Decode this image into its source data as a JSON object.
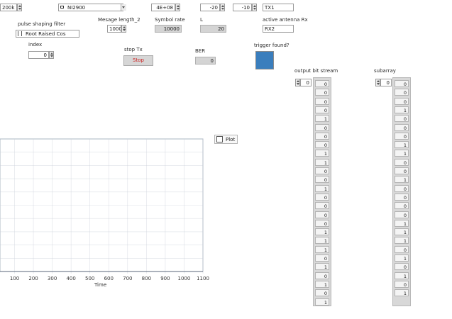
{
  "top_controls": {
    "rate_value": "200k",
    "device_value": "NI2900",
    "freq_value": "4E+08",
    "gain_value": "-20",
    "level_value": "-10",
    "tx_antenna_value": "TX1"
  },
  "pulse_filter": {
    "label": "pulse shaping filter",
    "value": "Root Raised Cos"
  },
  "message_length": {
    "label": "Mesage length_2",
    "value": "1000"
  },
  "symbol_rate": {
    "label": "Symbol rate",
    "value": "10000"
  },
  "l_param": {
    "label": "L",
    "value": "20"
  },
  "rx_antenna": {
    "label": "active antenna Rx",
    "value": "RX2"
  },
  "index": {
    "label": "index",
    "value": "0"
  },
  "stop_tx": {
    "label": "stop Tx",
    "button": "Stop"
  },
  "ber": {
    "label": "BER",
    "value": "0"
  },
  "trigger": {
    "label": "trigger found?",
    "color": "#3a7ebd"
  },
  "plot_legend": {
    "label": "Plot"
  },
  "graph": {
    "xlabel": "Time",
    "x_ticks": [
      "100",
      "200",
      "300",
      "400",
      "500",
      "600",
      "700",
      "800",
      "900",
      "1000",
      "1100"
    ],
    "bar_color": "#7a1616"
  },
  "output_bit_stream": {
    "label": "output bit stream",
    "index": "0",
    "values": [
      "0",
      "0",
      "0",
      "0",
      "1",
      "0",
      "0",
      "0",
      "1",
      "1",
      "0",
      "0",
      "1",
      "0",
      "0",
      "0",
      "0",
      "1",
      "1",
      "1",
      "0",
      "1",
      "0",
      "1",
      "0",
      "1"
    ]
  },
  "subarray": {
    "label": "subarray",
    "index": "0",
    "values": [
      "0",
      "0",
      "0",
      "1",
      "0",
      "0",
      "0",
      "1",
      "1",
      "0",
      "0",
      "1",
      "0",
      "0",
      "0",
      "0",
      "1",
      "1",
      "1",
      "0",
      "1",
      "0",
      "1",
      "0",
      "1"
    ]
  },
  "chart_data": {
    "type": "bar",
    "xlabel": "Time",
    "xlim": [
      0,
      1100
    ],
    "ylim": [
      0,
      1
    ],
    "x_ticks": [
      100,
      200,
      300,
      400,
      500,
      600,
      700,
      800,
      900,
      1000,
      1100
    ],
    "signal_end": 1010,
    "bits": [
      0,
      0,
      0,
      0,
      1,
      0,
      0,
      0,
      1,
      1,
      0,
      0,
      1,
      0,
      0,
      0,
      0,
      1,
      1,
      1,
      0,
      1,
      0,
      1,
      0,
      1,
      1,
      0,
      1,
      0,
      0,
      1,
      1,
      0,
      1,
      1,
      0,
      0,
      1,
      0,
      1,
      1,
      0,
      1,
      0,
      0,
      0,
      1,
      1,
      0,
      1,
      0,
      1,
      1,
      1,
      0,
      0,
      1,
      0,
      1,
      0,
      0,
      1,
      1,
      0,
      1,
      0,
      1,
      1,
      0,
      0,
      1,
      0,
      0,
      1,
      1,
      1,
      0,
      1,
      0,
      0,
      1,
      0,
      1,
      1,
      0,
      1,
      1,
      0,
      0,
      1,
      0,
      1,
      0,
      1,
      1,
      0,
      0,
      1,
      0
    ]
  }
}
